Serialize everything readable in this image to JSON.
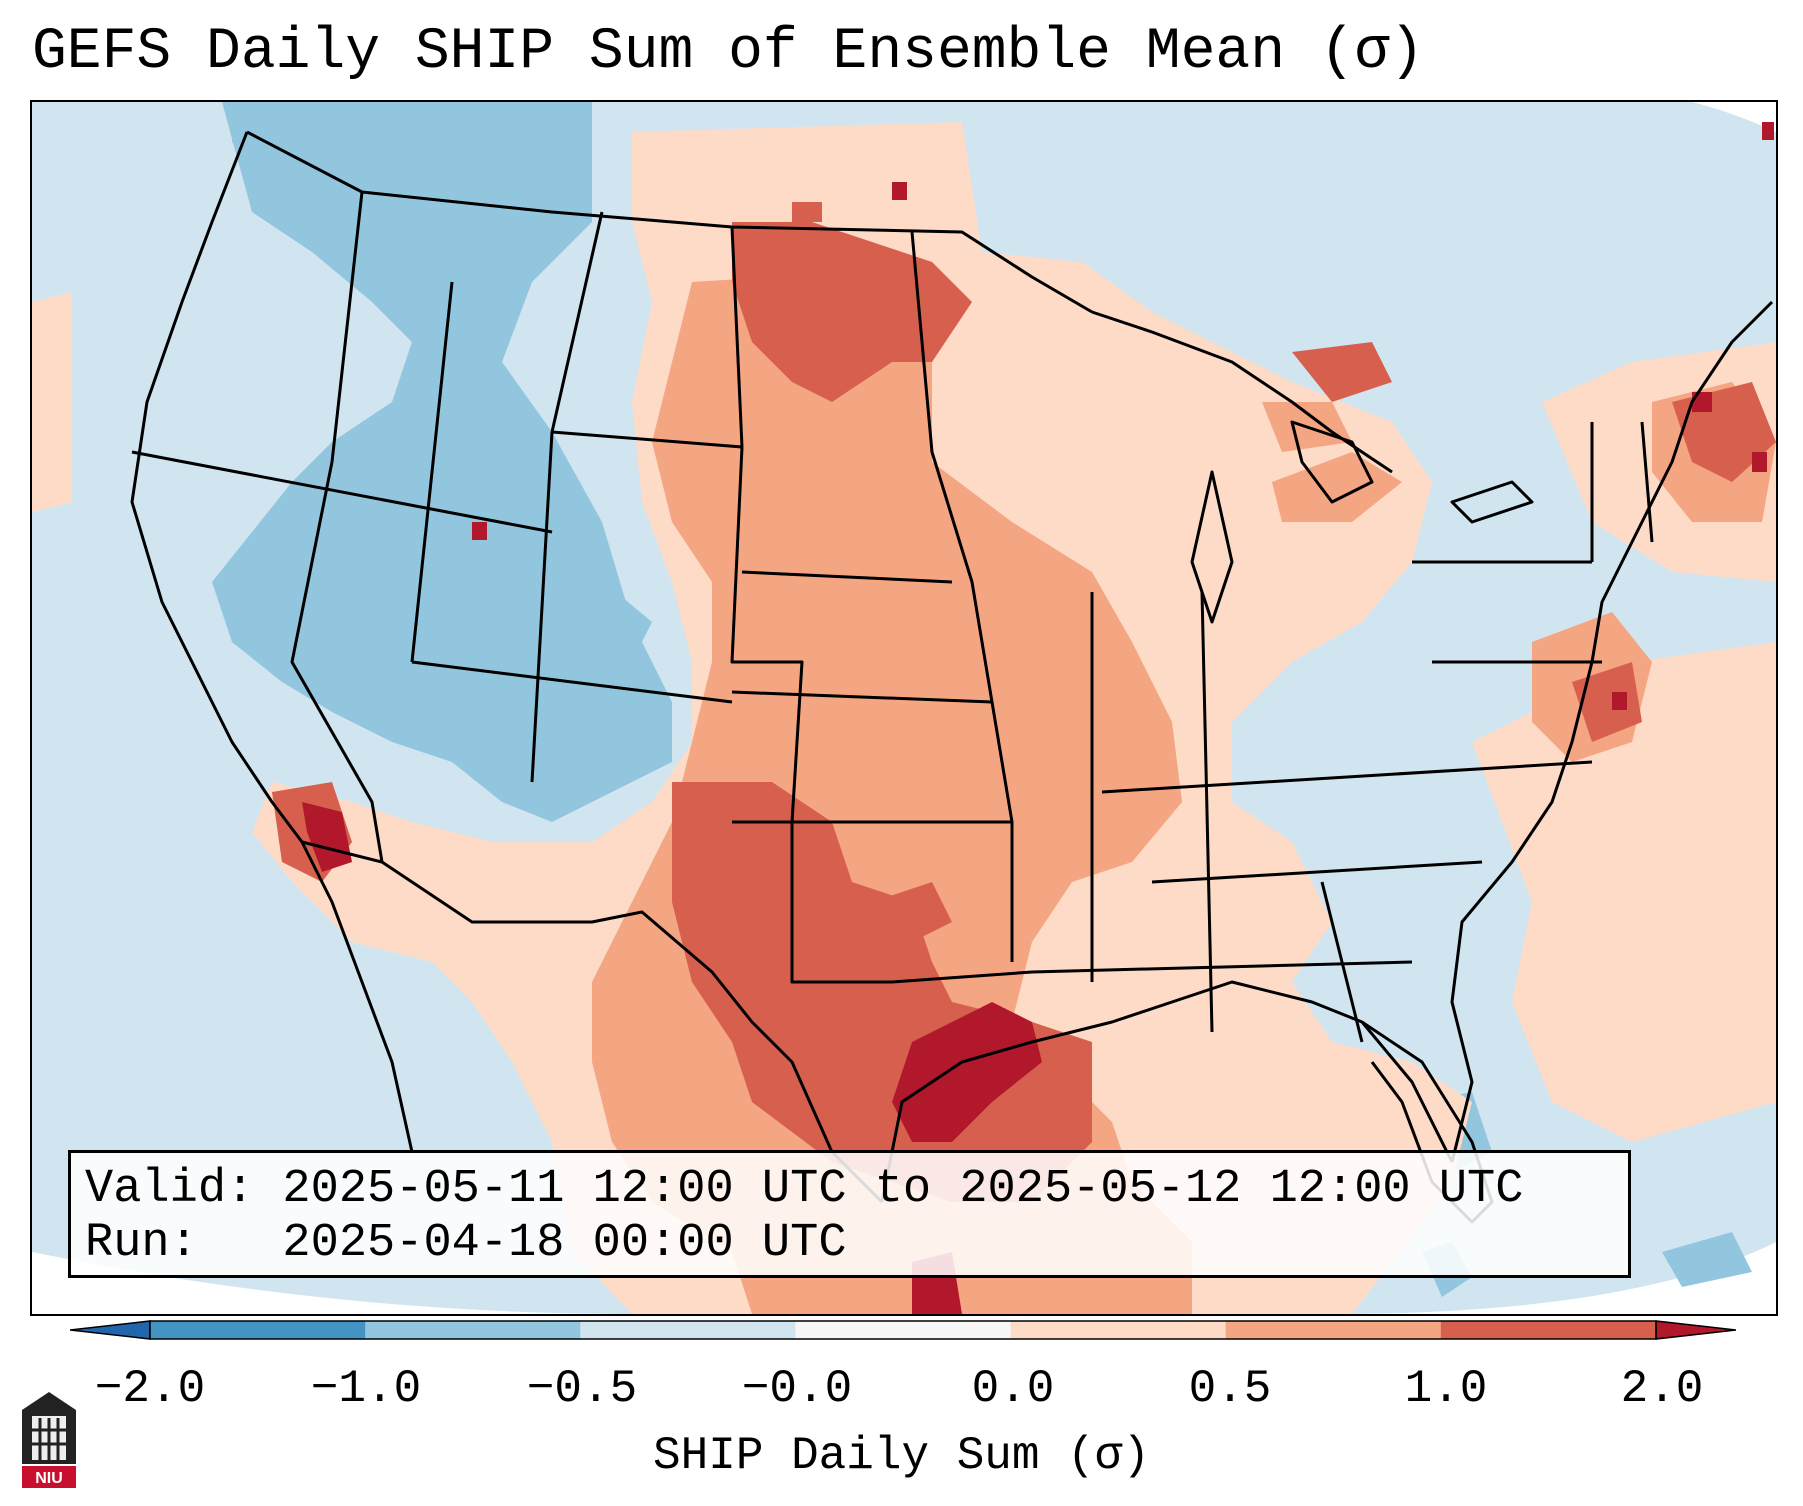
{
  "title": "GEFS Daily SHIP Sum of Ensemble Mean (σ)",
  "info": {
    "valid_line": "Valid: 2025-05-11 12:00 UTC to 2025-05-12 12:00 UTC",
    "run_line": "Run:   2025-04-18 00:00 UTC"
  },
  "colorbar": {
    "label": "SHIP Daily Sum (σ)",
    "ticks": [
      "−2.0",
      "−1.0",
      "−0.5",
      "−0.0",
      "0.0",
      "0.5",
      "1.0",
      "2.0"
    ],
    "colors": [
      "#2166ac",
      "#4393c3",
      "#92c5de",
      "#d1e5f0",
      "#fddbc7",
      "#f4a582",
      "#d6604d",
      "#b2182b"
    ],
    "extend": "both"
  },
  "logo": {
    "text": "NIU",
    "icon": "niu-tower-logo"
  },
  "map": {
    "projection": "Lambert conformal, CONUS",
    "background_level": "-0.0 to 0.0",
    "features": [
      "state boundaries",
      "coastlines",
      "country borders",
      "Great Lakes"
    ]
  }
}
